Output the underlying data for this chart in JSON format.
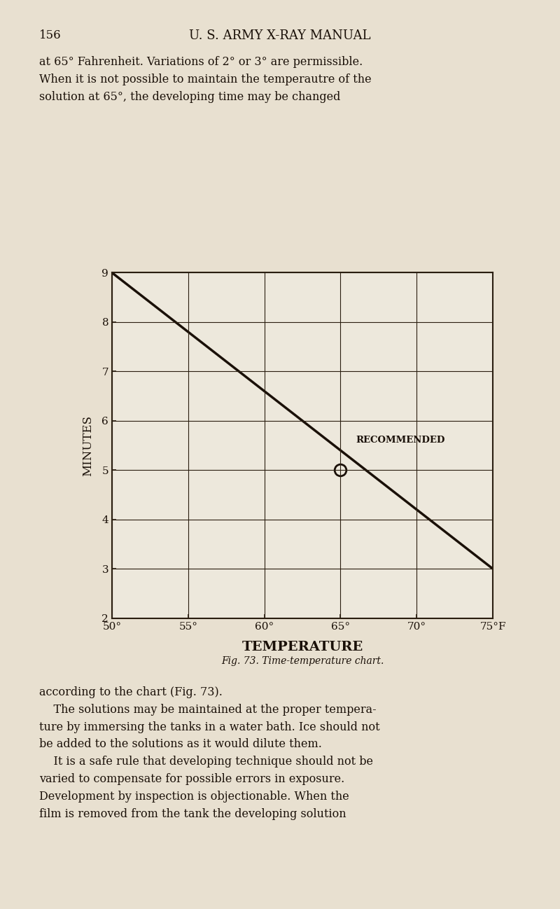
{
  "page_number": "156",
  "page_title": "U. S. ARMY X-RAY MANUAL",
  "top_text_lines": [
    "at 65° Fahrenheit. Variations of 2° or 3° are permissible.",
    "When it is not possible to maintain the temperautre of the",
    "solution at 65°, the developing time may be changed"
  ],
  "bottom_text_lines": [
    "according to the chart (Fig. 73).",
    "    The solutions may be maintained at the proper tempera-",
    "ture by immersing the tanks in a water bath. Ice should not",
    "be added to the solutions as it would dilute them.",
    "    It is a safe rule that developing technique should not be",
    "varied to compensate for possible errors in exposure.",
    "Development by inspection is objectionable. When the",
    "film is removed from the tank the developing solution"
  ],
  "fig_caption": "Fig. 73. Time-temperature chart.",
  "chart_xlabel": "TEMPERATURE",
  "chart_ylabel": "MINUTES",
  "xmin": 50,
  "xmax": 75,
  "ymin": 2,
  "ymax": 9,
  "xticks": [
    50,
    55,
    60,
    65,
    70,
    75
  ],
  "yticks": [
    2,
    3,
    4,
    5,
    6,
    7,
    8,
    9
  ],
  "line_x": [
    50,
    75
  ],
  "line_y": [
    9.0,
    3.0
  ],
  "recommended_x": 65,
  "recommended_y": 5,
  "recommended_label": "RECOMMENDED",
  "bg_color": "#e8e0d0",
  "chart_bg_color": "#ede8dc",
  "line_color": "#1a1008",
  "text_color": "#1a1008",
  "grid_color": "#2a1e10"
}
